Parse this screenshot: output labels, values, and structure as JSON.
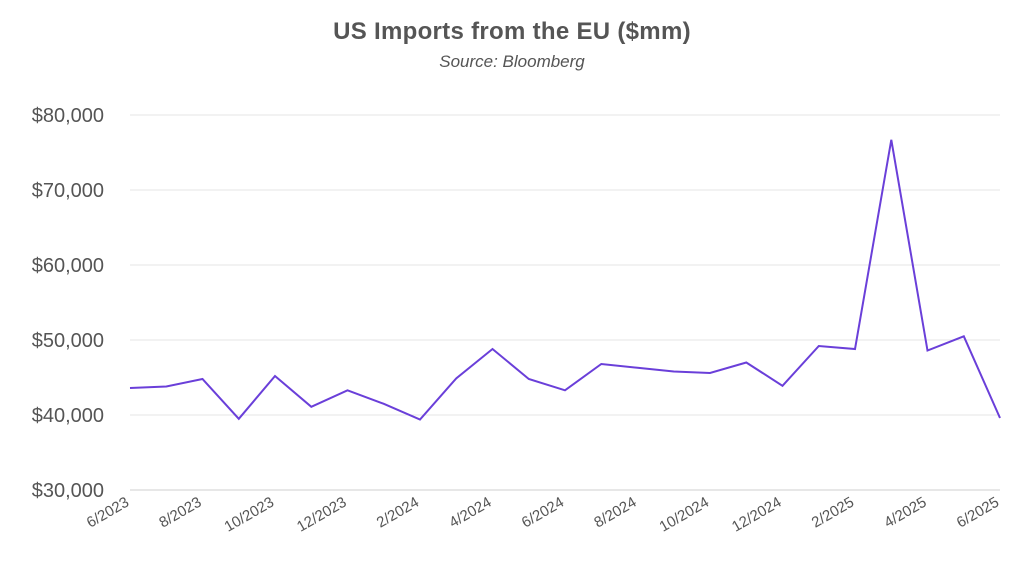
{
  "chart_data": {
    "type": "line",
    "title": "US Imports from the EU ($mm)",
    "subtitle": "Source: Bloomberg",
    "xlabel": "",
    "ylabel": "",
    "ylim": [
      30000,
      80000
    ],
    "y_ticks": [
      "$30,000",
      "$40,000",
      "$50,000",
      "$60,000",
      "$70,000",
      "$80,000"
    ],
    "y_tick_values": [
      30000,
      40000,
      50000,
      60000,
      70000,
      80000
    ],
    "x": [
      "6/2023",
      "7/2023",
      "8/2023",
      "9/2023",
      "10/2023",
      "11/2023",
      "12/2023",
      "1/2024",
      "2/2024",
      "3/2024",
      "4/2024",
      "5/2024",
      "6/2024",
      "7/2024",
      "8/2024",
      "9/2024",
      "10/2024",
      "11/2024",
      "12/2024",
      "1/2025",
      "2/2025",
      "3/2025",
      "4/2025",
      "5/2025",
      "6/2025"
    ],
    "x_tick_labels": [
      "6/2023",
      "8/2023",
      "10/2023",
      "12/2023",
      "2/2024",
      "4/2024",
      "6/2024",
      "8/2024",
      "10/2024",
      "12/2024",
      "2/2025",
      "4/2025",
      "6/2025"
    ],
    "series": [
      {
        "color": "#6a3fd9",
        "values": [
          43600,
          43800,
          44800,
          39500,
          45200,
          41100,
          43300,
          41500,
          39400,
          44900,
          48800,
          44800,
          43300,
          46800,
          46300,
          45800,
          45600,
          47000,
          43900,
          49200,
          48800,
          76700,
          48600,
          50500,
          39600
        ]
      }
    ],
    "grid": true,
    "legend": "none",
    "colors": {
      "line": "#6a3fd9",
      "grid": "#e6e6e6",
      "text": "#555555"
    }
  }
}
